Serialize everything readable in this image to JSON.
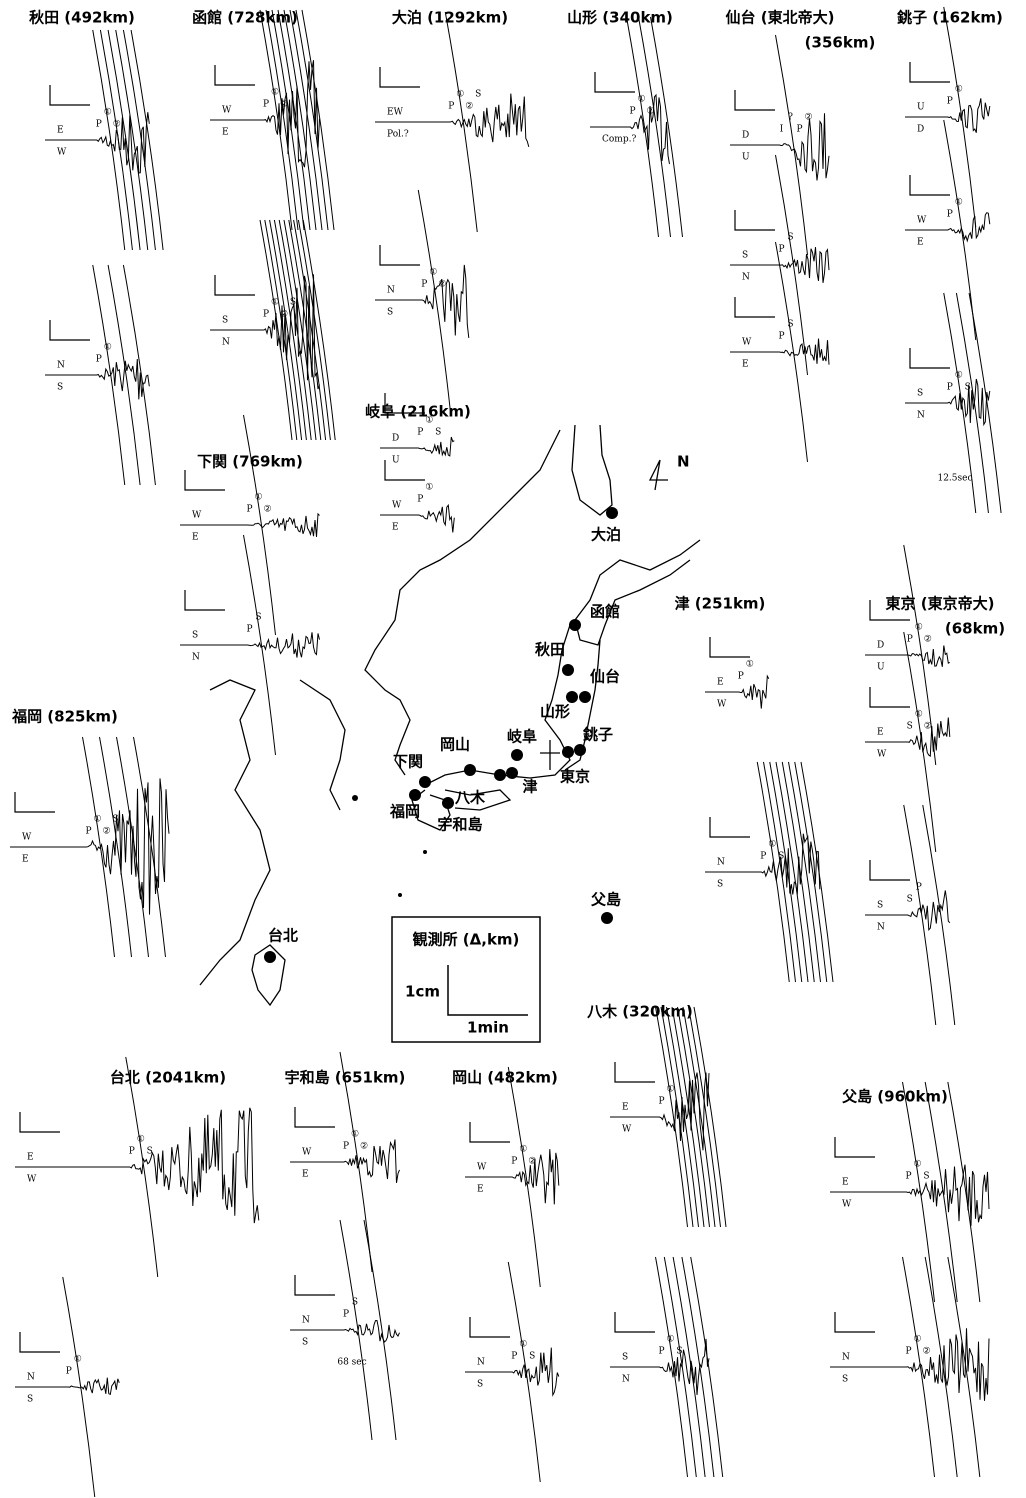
{
  "stations": [
    {
      "title": "秋田 (492km)",
      "traces": [
        {
          "components": [
            "E",
            "W"
          ],
          "phases": [
            "P",
            "①",
            "②"
          ]
        },
        {
          "components": [
            "N",
            "S"
          ],
          "phases": [
            "P",
            "①"
          ]
        }
      ]
    },
    {
      "title": "函館 (728km)",
      "traces": [
        {
          "components": [
            "W",
            "E"
          ],
          "phases": [
            "P",
            "①",
            "②"
          ]
        },
        {
          "components": [
            "S",
            "N"
          ],
          "phases": [
            "P",
            "①",
            "②",
            "S"
          ]
        }
      ]
    },
    {
      "title": "大泊 (1292km)",
      "traces": [
        {
          "components": [
            "EW",
            "Pol.?"
          ],
          "phases": [
            "P",
            "①",
            "②",
            "S"
          ]
        },
        {
          "components": [
            "N",
            "S"
          ],
          "phases": [
            "P",
            "①",
            "②"
          ]
        }
      ]
    },
    {
      "title": "山形 (340km)",
      "traces": [
        {
          "components": [
            "",
            "Comp.?"
          ],
          "phases": [
            "P",
            "①",
            "②"
          ]
        }
      ]
    },
    {
      "title": "仙台 (東北帝大)",
      "subtitle": "(356km)",
      "traces": [
        {
          "components": [
            "D",
            "U"
          ],
          "phases": [
            "I",
            "?",
            "P",
            "②"
          ]
        },
        {
          "components": [
            "S",
            "N"
          ],
          "phases": [
            "P",
            "S"
          ]
        },
        {
          "components": [
            "W",
            "E"
          ],
          "phases": [
            "P",
            "S"
          ]
        }
      ]
    },
    {
      "title": "銚子 (162km)",
      "note": "12.5sec",
      "traces": [
        {
          "components": [
            "U",
            "D"
          ],
          "phases": [
            "P",
            "①"
          ]
        },
        {
          "components": [
            "W",
            "E"
          ],
          "phases": [
            "P",
            "①"
          ]
        },
        {
          "components": [
            "S",
            "N"
          ],
          "phases": [
            "P",
            "①",
            "S"
          ]
        }
      ]
    },
    {
      "title": "岐阜 (216km)",
      "traces": [
        {
          "components": [
            "D",
            "U"
          ],
          "phases": [
            "P",
            "①",
            "S"
          ]
        },
        {
          "components": [
            "W",
            "E"
          ],
          "phases": [
            "P",
            "①"
          ]
        }
      ]
    },
    {
      "title": "下関 (769km)",
      "traces": [
        {
          "components": [
            "W",
            "E"
          ],
          "phases": [
            "P",
            "①",
            "②"
          ]
        },
        {
          "components": [
            "S",
            "N"
          ],
          "phases": [
            "P",
            "S"
          ]
        }
      ]
    },
    {
      "title": "福岡 (825km)",
      "traces": [
        {
          "components": [
            "W",
            "E"
          ],
          "phases": [
            "P",
            "①",
            "②",
            "S"
          ]
        }
      ]
    },
    {
      "title": "津 (251km)",
      "traces": [
        {
          "components": [
            "E",
            "W"
          ],
          "phases": [
            "P",
            "①"
          ]
        },
        {
          "components": [
            "N",
            "S"
          ],
          "phases": [
            "P",
            "①",
            "S"
          ]
        }
      ]
    },
    {
      "title": "東京 (東京帝大)",
      "subtitle": "(68km)",
      "traces": [
        {
          "components": [
            "D",
            "U"
          ],
          "phases": [
            "P",
            "①",
            "②"
          ]
        },
        {
          "components": [
            "E",
            "W"
          ],
          "phases": [
            "S",
            "①",
            "②"
          ]
        },
        {
          "components": [
            "S",
            "N"
          ],
          "phases": [
            "S",
            "P"
          ]
        }
      ]
    },
    {
      "title": "台北 (2041km)",
      "traces": [
        {
          "components": [
            "E",
            "W"
          ],
          "phases": [
            "P",
            "①",
            "S"
          ]
        },
        {
          "components": [
            "N",
            "S"
          ],
          "phases": [
            "P",
            "①"
          ]
        }
      ]
    },
    {
      "title": "宇和島 (651km)",
      "note": "68 sec",
      "traces": [
        {
          "components": [
            "W",
            "E"
          ],
          "phases": [
            "P",
            "①",
            "②"
          ]
        },
        {
          "components": [
            "N",
            "S"
          ],
          "phases": [
            "P",
            "S"
          ]
        }
      ]
    },
    {
      "title": "岡山 (482km)",
      "traces": [
        {
          "components": [
            "W",
            "E"
          ],
          "phases": [
            "P",
            "①",
            "②"
          ]
        },
        {
          "components": [
            "N",
            "S"
          ],
          "phases": [
            "P",
            "①",
            "S"
          ]
        }
      ]
    },
    {
      "title": "八木 (320km)",
      "traces": [
        {
          "components": [
            "E",
            "W"
          ],
          "phases": [
            "P",
            "①"
          ]
        },
        {
          "components": [
            "S",
            "N"
          ],
          "phases": [
            "P",
            "①",
            "S"
          ]
        }
      ]
    },
    {
      "title": "父島 (960km)",
      "traces": [
        {
          "components": [
            "E",
            "W"
          ],
          "phases": [
            "P",
            "①",
            "S"
          ]
        },
        {
          "components": [
            "N",
            "S"
          ],
          "phases": [
            "P",
            "①",
            "②"
          ]
        }
      ]
    }
  ],
  "map": {
    "north": "N",
    "labels": [
      "大泊",
      "函館",
      "秋田",
      "仙台",
      "山形",
      "岐阜",
      "銚子",
      "岡山",
      "下関",
      "東京",
      "津",
      "八木",
      "福岡",
      "宇和島",
      "父島",
      "台北"
    ]
  },
  "legend": {
    "title": "観測所 (Δ,km)",
    "vertical": "1cm",
    "horizontal": "1min"
  }
}
